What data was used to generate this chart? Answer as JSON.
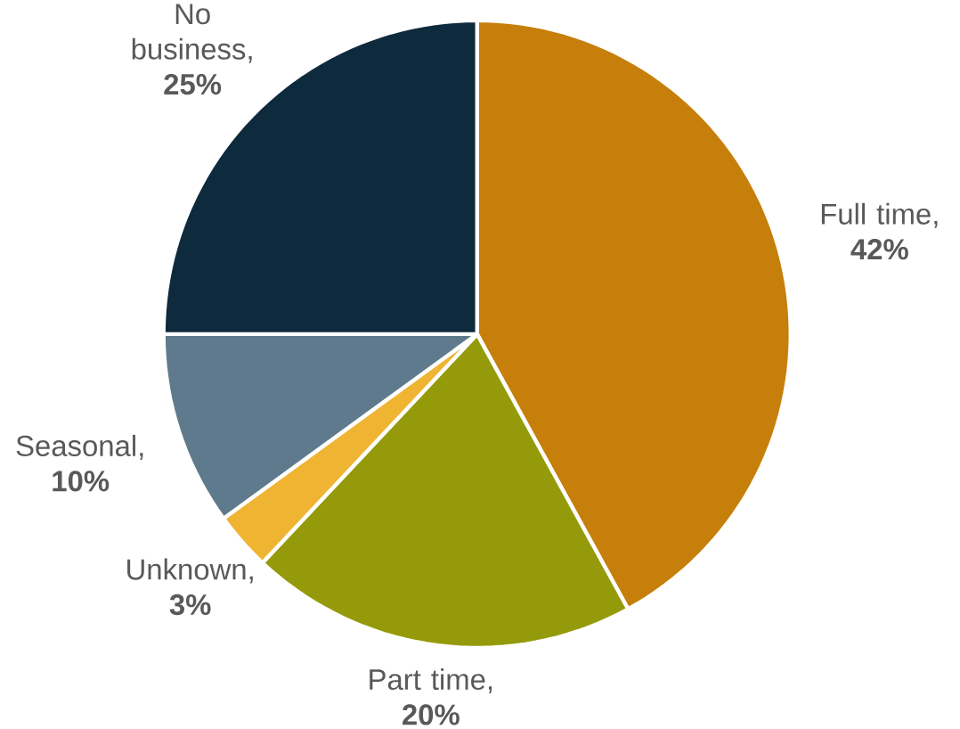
{
  "chart_data": {
    "type": "pie",
    "categories": [
      "Full time",
      "Part time",
      "Unknown",
      "Seasonal",
      "No business"
    ],
    "values": [
      42,
      20,
      3,
      10,
      25
    ],
    "colors": [
      "#c67f0a",
      "#959a0a",
      "#f0b433",
      "#5f7a8c",
      "#0e2a3d"
    ],
    "value_labels": [
      ", **42%**",
      ", **20%**",
      ", **3%**",
      ", **10%**",
      ", **25%**"
    ]
  }
}
